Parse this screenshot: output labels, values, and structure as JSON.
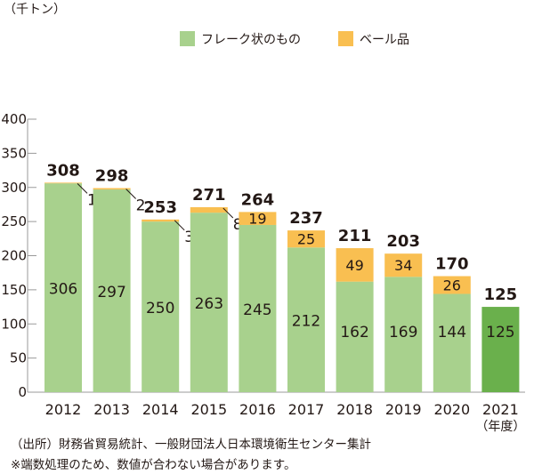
{
  "unit_label": "（千トン）",
  "notes": {
    "source": "（出所）財務省貿易統計、一般財団法人日本環境衛生センター集計",
    "rounding": "※端数処理のため、数値が合わない場合があります。"
  },
  "colors": {
    "flake": "#a8d18d",
    "bale": "#f9bf51",
    "flake_final": "#6ab04c",
    "axis": "#9a9a9a",
    "text": "#231815"
  },
  "chart_data": {
    "type": "bar",
    "stacked": true,
    "categories": [
      "2012",
      "2013",
      "2014",
      "2015",
      "2016",
      "2017",
      "2018",
      "2019",
      "2020",
      "2021"
    ],
    "category_sublabels": [
      "",
      "",
      "",
      "",
      "",
      "",
      "",
      "",
      "",
      "（年度）"
    ],
    "series": [
      {
        "name": "フレーク状のもの",
        "values": [
          306,
          297,
          250,
          263,
          245,
          212,
          162,
          169,
          144,
          125
        ]
      },
      {
        "name": "ベール品",
        "values": [
          1,
          2,
          3,
          8,
          19,
          25,
          49,
          34,
          26,
          0
        ]
      }
    ],
    "totals": [
      308,
      298,
      253,
      271,
      264,
      237,
      211,
      203,
      170,
      125
    ],
    "ylim": [
      0,
      400
    ],
    "yticks": [
      0,
      50,
      100,
      150,
      200,
      250,
      300,
      350,
      400
    ],
    "ylabel": "（千トン）",
    "legend_position": "top",
    "grid": false
  }
}
